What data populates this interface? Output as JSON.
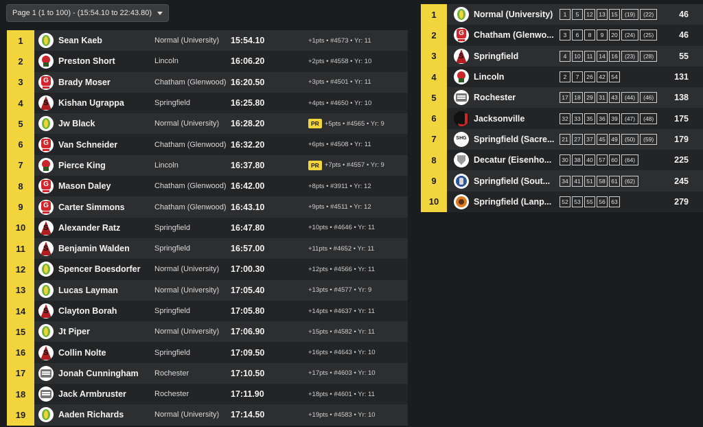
{
  "page_selector": {
    "label": "Page 1 (1 to 100) - (15:54.10 to 22:43.80)"
  },
  "individual_results": [
    {
      "place": "1",
      "logo": "normal",
      "name": "Sean Kaeb",
      "team": "Normal (University)",
      "time": "15:54.10",
      "pr": false,
      "meta": "+1pts • #4573 • Yr: 11"
    },
    {
      "place": "2",
      "logo": "lincoln",
      "name": "Preston Short",
      "team": "Lincoln",
      "time": "16:06.20",
      "pr": false,
      "meta": "+2pts • #4558 • Yr: 10"
    },
    {
      "place": "3",
      "logo": "chatham",
      "name": "Brady Moser",
      "team": "Chatham (Glenwood)",
      "time": "16:20.50",
      "pr": false,
      "meta": "+3pts • #4501 • Yr: 11"
    },
    {
      "place": "4",
      "logo": "springfield",
      "name": "Kishan Ugrappa",
      "team": "Springfield",
      "time": "16:25.80",
      "pr": false,
      "meta": "+4pts • #4650 • Yr: 10"
    },
    {
      "place": "5",
      "logo": "normal",
      "name": "Jw Black",
      "team": "Normal (University)",
      "time": "16:28.20",
      "pr": true,
      "pr_label": "PR",
      "meta": "+5pts • #4565 • Yr: 9"
    },
    {
      "place": "6",
      "logo": "chatham",
      "name": "Van Schneider",
      "team": "Chatham (Glenwood)",
      "time": "16:32.20",
      "pr": false,
      "meta": "+6pts • #4508 • Yr: 11"
    },
    {
      "place": "7",
      "logo": "lincoln",
      "name": "Pierce King",
      "team": "Lincoln",
      "time": "16:37.80",
      "pr": true,
      "pr_label": "PR",
      "meta": "+7pts • #4557 • Yr: 9"
    },
    {
      "place": "8",
      "logo": "chatham",
      "name": "Mason Daley",
      "team": "Chatham (Glenwood)",
      "time": "16:42.00",
      "pr": false,
      "meta": "+8pts • #3911 • Yr: 12"
    },
    {
      "place": "9",
      "logo": "chatham",
      "name": "Carter Simmons",
      "team": "Chatham (Glenwood)",
      "time": "16:43.10",
      "pr": false,
      "meta": "+9pts • #4511 • Yr: 12"
    },
    {
      "place": "10",
      "logo": "springfield",
      "name": "Alexander Ratz",
      "team": "Springfield",
      "time": "16:47.80",
      "pr": false,
      "meta": "+10pts • #4646 • Yr: 11"
    },
    {
      "place": "11",
      "logo": "springfield",
      "name": "Benjamin Walden",
      "team": "Springfield",
      "time": "16:57.00",
      "pr": false,
      "meta": "+11pts • #4652 • Yr: 11"
    },
    {
      "place": "12",
      "logo": "normal",
      "name": "Spencer Boesdorfer",
      "team": "Normal (University)",
      "time": "17:00.30",
      "pr": false,
      "meta": "+12pts • #4566 • Yr: 11"
    },
    {
      "place": "13",
      "logo": "normal",
      "name": "Lucas Layman",
      "team": "Normal (University)",
      "time": "17:05.40",
      "pr": false,
      "meta": "+13pts • #4577 • Yr: 9"
    },
    {
      "place": "14",
      "logo": "springfield",
      "name": "Clayton Borah",
      "team": "Springfield",
      "time": "17:05.80",
      "pr": false,
      "meta": "+14pts • #4637 • Yr: 11"
    },
    {
      "place": "15",
      "logo": "normal",
      "name": "Jt Piper",
      "team": "Normal (University)",
      "time": "17:06.90",
      "pr": false,
      "meta": "+15pts • #4582 • Yr: 11"
    },
    {
      "place": "16",
      "logo": "springfield",
      "name": "Collin Nolte",
      "team": "Springfield",
      "time": "17:09.50",
      "pr": false,
      "meta": "+16pts • #4643 • Yr: 10"
    },
    {
      "place": "17",
      "logo": "rochester",
      "name": "Jonah Cunningham",
      "team": "Rochester",
      "time": "17:10.50",
      "pr": false,
      "meta": "+17pts • #4603 • Yr: 10"
    },
    {
      "place": "18",
      "logo": "rochester",
      "name": "Jack Armbruster",
      "team": "Rochester",
      "time": "17:11.90",
      "pr": false,
      "meta": "+18pts • #4601 • Yr: 11"
    },
    {
      "place": "19",
      "logo": "normal",
      "name": "Aaden Richards",
      "team": "Normal (University)",
      "time": "17:14.50",
      "pr": false,
      "meta": "+19pts • #4583 • Yr: 10"
    }
  ],
  "team_scores": [
    {
      "place": "1",
      "logo": "normal",
      "name": "Normal (University)",
      "scores": [
        "1",
        "5",
        "12",
        "13",
        "15",
        "(19)",
        "(22)"
      ],
      "total": "46"
    },
    {
      "place": "2",
      "logo": "chatham",
      "name": "Chatham (Glenwo...",
      "scores": [
        "3",
        "6",
        "8",
        "9",
        "20",
        "(24)",
        "(25)"
      ],
      "total": "46"
    },
    {
      "place": "3",
      "logo": "springfield",
      "name": "Springfield",
      "scores": [
        "4",
        "10",
        "11",
        "14",
        "16",
        "(23)",
        "(28)"
      ],
      "total": "55"
    },
    {
      "place": "4",
      "logo": "lincoln",
      "name": "Lincoln",
      "scores": [
        "2",
        "7",
        "26",
        "42",
        "54"
      ],
      "total": "131"
    },
    {
      "place": "5",
      "logo": "rochester",
      "name": "Rochester",
      "scores": [
        "17",
        "18",
        "29",
        "31",
        "43",
        "(44)",
        "(46)"
      ],
      "total": "138"
    },
    {
      "place": "6",
      "logo": "jacksonville",
      "name": "Jacksonville",
      "scores": [
        "32",
        "33",
        "35",
        "36",
        "39",
        "(47)",
        "(48)"
      ],
      "total": "175"
    },
    {
      "place": "7",
      "logo": "sacred",
      "name": "Springfield (Sacre...",
      "scores": [
        "21",
        "27",
        "37",
        "45",
        "49",
        "(50)",
        "(59)"
      ],
      "total": "179"
    },
    {
      "place": "8",
      "logo": "decatur",
      "name": "Decatur (Eisenho...",
      "scores": [
        "30",
        "38",
        "40",
        "57",
        "60",
        "(64)"
      ],
      "total": "225"
    },
    {
      "place": "9",
      "logo": "southeast",
      "name": "Springfield (Sout...",
      "scores": [
        "34",
        "41",
        "51",
        "58",
        "61",
        "(62)"
      ],
      "total": "245"
    },
    {
      "place": "10",
      "logo": "lanphier",
      "name": "Springfield (Lanp...",
      "scores": [
        "52",
        "53",
        "55",
        "56",
        "63"
      ],
      "total": "279"
    }
  ],
  "colors": {
    "place_badge": "#f2d43c",
    "row_odd": "#2d2e30",
    "row_even": "#232426",
    "background": "#1b1c1e"
  }
}
